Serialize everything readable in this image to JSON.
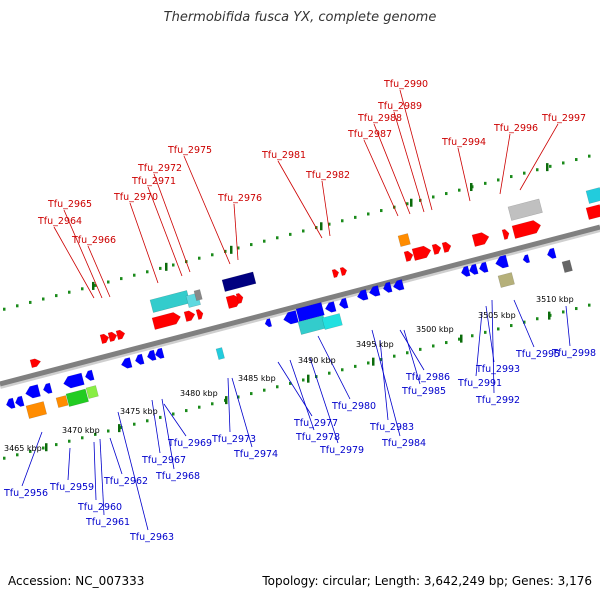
{
  "title": "Thermobifida fusca YX, complete genome",
  "footer": {
    "accession": "Accession: NC_007333",
    "summary": "Topology: circular; Length: 3,642,249 bp; Genes: 3,176"
  },
  "colors": {
    "backbone": "#808080",
    "tick": "#1a8a1a",
    "forward_label": "#cc0000",
    "reverse_label": "#0000cc",
    "forward_gene": "#ff0000",
    "reverse_gene": "#0000ff"
  },
  "kbp_labels": [
    "3465 kbp",
    "3470 kbp",
    "3475 kbp",
    "3480 kbp",
    "3485 kbp",
    "3490 kbp",
    "3495 kbp",
    "3500 kbp",
    "3505 kbp",
    "3510 kbp"
  ],
  "forward_labels": [
    "Tfu_2964",
    "Tfu_2965",
    "Tfu_2966",
    "Tfu_2970",
    "Tfu_2971",
    "Tfu_2972",
    "Tfu_2975",
    "Tfu_2976",
    "Tfu_2981",
    "Tfu_2982",
    "Tfu_2987",
    "Tfu_2988",
    "Tfu_2989",
    "Tfu_2990",
    "Tfu_2994",
    "Tfu_2996",
    "Tfu_2997"
  ],
  "reverse_labels": [
    "Tfu_2956",
    "Tfu_2959",
    "Tfu_2960",
    "Tfu_2961",
    "Tfu_2962",
    "Tfu_2963",
    "Tfu_2967",
    "Tfu_2968",
    "Tfu_2969",
    "Tfu_2973",
    "Tfu_2974",
    "Tfu_2977",
    "Tfu_2978",
    "Tfu_2979",
    "Tfu_2980",
    "Tfu_2983",
    "Tfu_2984",
    "Tfu_2985",
    "Tfu_2986",
    "Tfu_2991",
    "Tfu_2992",
    "Tfu_2993",
    "Tfu_2995",
    "Tfu_2998"
  ]
}
